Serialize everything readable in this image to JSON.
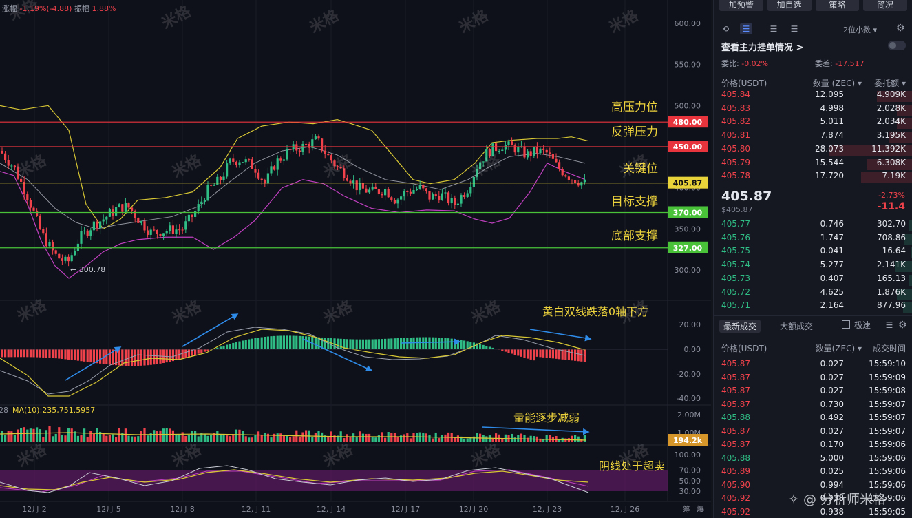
{
  "header": {
    "change_label": "涨幅",
    "change_value": "-1.19%(-4.88)",
    "amplitude_label": "振幅",
    "amplitude_value": "1.88%"
  },
  "toolbar": {
    "buttons": [
      "加预警",
      "加自选",
      "策略",
      "简况"
    ]
  },
  "chart": {
    "watermark": "米格",
    "price_ticks": [
      "600.00",
      "550.00",
      "500.00",
      "450.00",
      "400.00",
      "350.00",
      "300.00"
    ],
    "macd_ticks": [
      "20.00",
      "0.00",
      "-20.00",
      "-40.00"
    ],
    "vol_ticks": [
      "2.00M",
      "1.00M"
    ],
    "rsi_ticks": [
      "100.00",
      "70.00",
      "50.00",
      "30.00"
    ],
    "date_ticks": [
      "12月 2",
      "12月 5",
      "12月 8",
      "12月 11",
      "12月 14",
      "12月 17",
      "12月 20",
      "12月 23",
      "12月 26"
    ],
    "corner_labels": [
      "筹",
      "爆"
    ],
    "low_marker": "← 300.78",
    "vol_ma_label": "MA(10):235,751.5957",
    "vol_ma_prefix": "28",
    "vol_tag": "194.2k",
    "levels": [
      {
        "price": 480,
        "tag": "480.00",
        "color": "#e8343c",
        "note": "高压力位"
      },
      {
        "price": 450,
        "tag": "450.00",
        "color": "#e8343c",
        "note": "反弹压力"
      },
      {
        "price": 405.87,
        "tag": "405.87",
        "color": "#e8d43a",
        "note": "关键位"
      },
      {
        "price": 370,
        "tag": "370.00",
        "color": "#49c23a",
        "note": "目标支撑"
      },
      {
        "price": 327,
        "tag": "327.00",
        "color": "#49c23a",
        "note": "底部支撑"
      }
    ],
    "annotations": {
      "macd": "黄白双线跌落0轴下方",
      "volume": "量能逐步减弱",
      "rsi": "阴线处于超卖"
    }
  },
  "orderbook": {
    "decimals": "2位小数",
    "main_orders": "查看主力挂单情况 >",
    "weibi_label": "委比:",
    "weibi_value": "-0.02%",
    "weicha_label": "委差:",
    "weicha_value": "-17.517",
    "headers": [
      "价格(USDT)",
      "数量 (ZEC)",
      "委托额"
    ],
    "asks": [
      {
        "price": "405.84",
        "qty": "12.095",
        "total": "4.909K",
        "depth": 0.18
      },
      {
        "price": "405.83",
        "qty": "4.998",
        "total": "2.028K",
        "depth": 0.08
      },
      {
        "price": "405.82",
        "qty": "5.011",
        "total": "2.034K",
        "depth": 0.08
      },
      {
        "price": "405.81",
        "qty": "7.874",
        "total": "3.195K",
        "depth": 0.12
      },
      {
        "price": "405.80",
        "qty": "28.073",
        "total": "11.392K",
        "depth": 0.42
      },
      {
        "price": "405.79",
        "qty": "15.544",
        "total": "6.308K",
        "depth": 0.23
      },
      {
        "price": "405.78",
        "qty": "17.720",
        "total": "7.19K",
        "depth": 0.26
      }
    ],
    "last_price": "405.87",
    "last_price_usd": "$405.87",
    "change_pct": "-2.73%",
    "change_abs": "-11.4",
    "bids": [
      {
        "price": "405.77",
        "qty": "0.746",
        "total": "302.70",
        "depth": 0.02
      },
      {
        "price": "405.76",
        "qty": "1.747",
        "total": "708.86",
        "depth": 0.04
      },
      {
        "price": "405.75",
        "qty": "0.041",
        "total": "16.64",
        "depth": 0.01
      },
      {
        "price": "405.74",
        "qty": "5.277",
        "total": "2.141K",
        "depth": 0.09
      },
      {
        "price": "405.73",
        "qty": "0.407",
        "total": "165.13",
        "depth": 0.02
      },
      {
        "price": "405.72",
        "qty": "4.625",
        "total": "1.876K",
        "depth": 0.08
      },
      {
        "price": "405.71",
        "qty": "2.164",
        "total": "877.96",
        "depth": 0.05
      }
    ]
  },
  "trades": {
    "tab_latest": "最新成交",
    "tab_large": "大额成交",
    "fast_label": "极速",
    "headers": [
      "价格(USDT)",
      "数量(ZEC)",
      "成交时间"
    ],
    "rows": [
      {
        "price": "405.87",
        "qty": "0.027",
        "time": "15:59:10",
        "side": "sell"
      },
      {
        "price": "405.87",
        "qty": "0.027",
        "time": "15:59:09",
        "side": "sell"
      },
      {
        "price": "405.87",
        "qty": "0.027",
        "time": "15:59:08",
        "side": "sell"
      },
      {
        "price": "405.87",
        "qty": "0.730",
        "time": "15:59:07",
        "side": "sell"
      },
      {
        "price": "405.88",
        "qty": "0.492",
        "time": "15:59:07",
        "side": "buy"
      },
      {
        "price": "405.87",
        "qty": "0.027",
        "time": "15:59:07",
        "side": "sell"
      },
      {
        "price": "405.87",
        "qty": "0.170",
        "time": "15:59:06",
        "side": "sell"
      },
      {
        "price": "405.88",
        "qty": "5.000",
        "time": "15:59:06",
        "side": "buy"
      },
      {
        "price": "405.89",
        "qty": "0.025",
        "time": "15:59:06",
        "side": "sell"
      },
      {
        "price": "405.90",
        "qty": "0.994",
        "time": "15:59:06",
        "side": "sell"
      },
      {
        "price": "405.92",
        "qty": "0.938",
        "time": "15:59:06",
        "side": "sell"
      },
      {
        "price": "405.92",
        "qty": "0.938",
        "time": "15:59:05",
        "side": "sell"
      }
    ]
  },
  "footer": {
    "watermark": "分析师米格"
  }
}
